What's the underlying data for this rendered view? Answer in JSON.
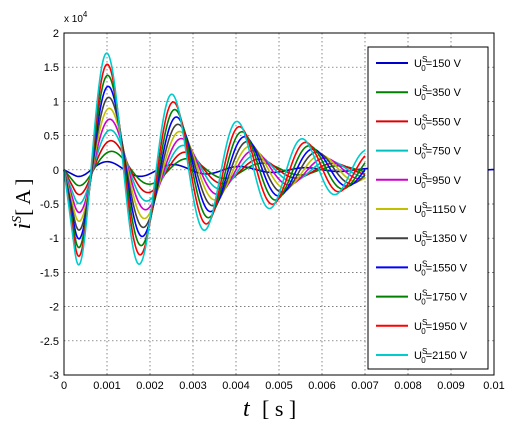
{
  "chart_data": {
    "type": "line",
    "title": "",
    "xlabel": "t",
    "xunit": "[ s ]",
    "ylabel": "i",
    "ylabel_sup": "S",
    "yunit": "[ A ]",
    "y_scale_label": "x 10",
    "y_scale_exp": "4",
    "xlim": [
      0,
      0.01
    ],
    "ylim": [
      -3,
      2
    ],
    "xticks": [
      "0",
      "0.001",
      "0.002",
      "0.003",
      "0.004",
      "0.005",
      "0.006",
      "0.007",
      "0.008",
      "0.009",
      "0.01"
    ],
    "yticks": [
      "2",
      "1.5",
      "1",
      "0.5",
      "0",
      "-0.5",
      "-1",
      "-1.5",
      "-2",
      "-2.5",
      "-3"
    ],
    "grid": true,
    "legend_position": "right",
    "series": [
      {
        "name": "U0S=150 V",
        "label_prefix": "U",
        "label_sup": "S",
        "label_sub": "0",
        "label_suffix": "=150 V",
        "color": "#0000cc",
        "amp": 0.15,
        "freq_hz": 650,
        "end_x": 0.01
      },
      {
        "name": "U0S=350 V",
        "label_prefix": "U",
        "label_sup": "S",
        "label_sub": "0",
        "label_suffix": "=350 V",
        "color": "#008000",
        "amp": 0.35,
        "freq_hz": 570,
        "end_x": 0.007
      },
      {
        "name": "U0S=550 V",
        "label_prefix": "U",
        "label_sup": "S",
        "label_sub": "0",
        "label_suffix": "=550 V",
        "color": "#dd0000",
        "amp": 0.55,
        "freq_hz": 580,
        "end_x": 0.007
      },
      {
        "name": "U0S=750 V",
        "label_prefix": "U",
        "label_sup": "S",
        "label_sub": "0",
        "label_suffix": "=750 V",
        "color": "#00c0c0",
        "amp": 0.75,
        "freq_hz": 590,
        "end_x": 0.007
      },
      {
        "name": "U0S=950 V",
        "label_prefix": "U",
        "label_sup": "S",
        "label_sub": "0",
        "label_suffix": "=950 V",
        "color": "#cc00cc",
        "amp": 0.95,
        "freq_hz": 600,
        "end_x": 0.007
      },
      {
        "name": "U0S=1150 V",
        "label_prefix": "U",
        "label_sup": "S",
        "label_sub": "0",
        "label_suffix": "=1150 V",
        "color": "#c0c000",
        "amp": 1.15,
        "freq_hz": 610,
        "end_x": 0.007
      },
      {
        "name": "U0S=1350 V",
        "label_prefix": "U",
        "label_sup": "S",
        "label_sub": "0",
        "label_suffix": "=1350 V",
        "color": "#404040",
        "amp": 1.35,
        "freq_hz": 620,
        "end_x": 0.007
      },
      {
        "name": "U0S=1550 V",
        "label_prefix": "U",
        "label_sup": "S",
        "label_sub": "0",
        "label_suffix": "=1550 V",
        "color": "#0000ff",
        "amp": 1.55,
        "freq_hz": 630,
        "end_x": 0.007
      },
      {
        "name": "U0S=1750 V",
        "label_prefix": "U",
        "label_sup": "S",
        "label_sub": "0",
        "label_suffix": "=1750 V",
        "color": "#008000",
        "amp": 1.75,
        "freq_hz": 640,
        "end_x": 0.007
      },
      {
        "name": "U0S=1950 V",
        "label_prefix": "U",
        "label_sup": "S",
        "label_sub": "0",
        "label_suffix": "=1950 V",
        "color": "#ff0000",
        "amp": 1.95,
        "freq_hz": 650,
        "end_x": 0.007
      },
      {
        "name": "U0S=2150 V",
        "label_prefix": "U",
        "label_sup": "S",
        "label_sub": "0",
        "label_suffix": "=2150 V",
        "color": "#00cccc",
        "amp": 2.15,
        "freq_hz": 660,
        "end_x": 0.007
      }
    ]
  }
}
